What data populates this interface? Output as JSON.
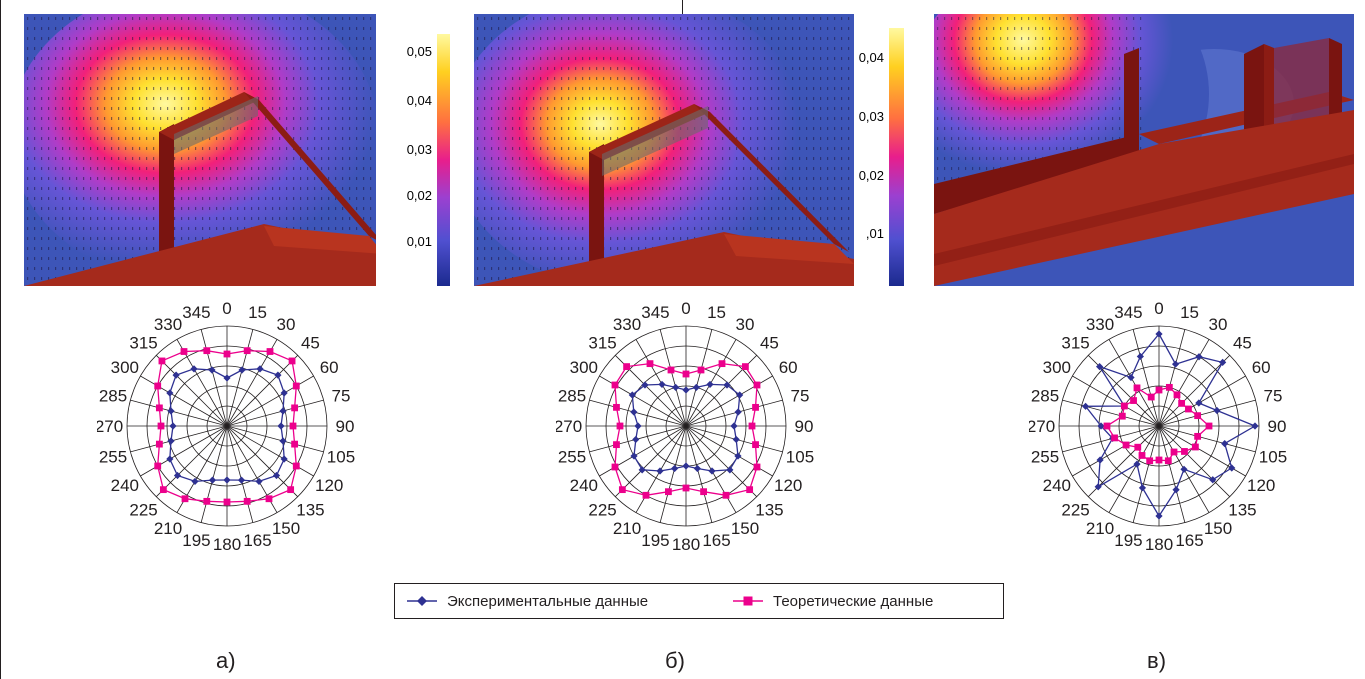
{
  "colorbars": {
    "a": {
      "ticks": [
        "0,05",
        "0,04",
        "0,03",
        "0,02",
        "0,01"
      ]
    },
    "b": {
      "ticks": [
        "0,04",
        "0,03",
        "0,02",
        ",01"
      ]
    }
  },
  "chart_data": [
    {
      "type": "polar-line",
      "panel": "a)",
      "angle_labels": [
        "0",
        "15",
        "30",
        "45",
        "60",
        "75",
        "90",
        "105",
        "120",
        "135",
        "150",
        "165",
        "180",
        "195",
        "210",
        "225",
        "240",
        "255",
        "270",
        "285",
        "300",
        "315",
        "330",
        "345"
      ],
      "rings": 5,
      "series": [
        {
          "name": "Экспериментальные данные",
          "color": "#2e3192",
          "marker": "diamond",
          "r": [
            2.4,
            2.9,
            3.3,
            3.6,
            3.3,
            2.9,
            2.7,
            2.9,
            3.3,
            3.5,
            3.2,
            2.8,
            2.7,
            2.8,
            3.2,
            3.5,
            3.3,
            2.9,
            2.7,
            2.9,
            3.3,
            3.6,
            3.3,
            2.9
          ]
        },
        {
          "name": "Теоретические данные",
          "color": "#ec008c",
          "marker": "square",
          "r": [
            3.6,
            3.9,
            4.3,
            4.6,
            4.0,
            3.5,
            3.3,
            3.5,
            4.0,
            4.5,
            4.2,
            3.9,
            3.8,
            3.9,
            4.2,
            4.5,
            4.0,
            3.5,
            3.3,
            3.5,
            4.0,
            4.6,
            4.3,
            3.9
          ]
        }
      ]
    },
    {
      "type": "polar-line",
      "panel": "б)",
      "angle_labels": [
        "0",
        "15",
        "30",
        "45",
        "60",
        "75",
        "90",
        "105",
        "120",
        "135",
        "150",
        "165",
        "180",
        "195",
        "210",
        "225",
        "240",
        "255",
        "270",
        "285",
        "300",
        "315",
        "330",
        "345"
      ],
      "rings": 5,
      "series": [
        {
          "name": "Экспериментальные данные",
          "color": "#2e3192",
          "marker": "diamond",
          "r": [
            1.8,
            2.0,
            2.4,
            2.9,
            3.1,
            2.7,
            2.4,
            2.6,
            3.0,
            3.1,
            2.6,
            2.2,
            2.0,
            2.2,
            2.6,
            3.1,
            3.0,
            2.6,
            2.4,
            2.7,
            3.1,
            2.9,
            2.4,
            2.0
          ]
        },
        {
          "name": "Теоретические данные",
          "color": "#ec008c",
          "marker": "square",
          "r": [
            2.6,
            2.9,
            3.6,
            4.2,
            4.1,
            3.6,
            3.3,
            3.6,
            4.1,
            4.5,
            4.0,
            3.4,
            3.1,
            3.4,
            4.0,
            4.5,
            4.1,
            3.6,
            3.3,
            3.6,
            4.1,
            4.2,
            3.6,
            2.9
          ]
        }
      ]
    },
    {
      "type": "polar-line",
      "panel": "в)",
      "angle_labels": [
        "0",
        "15",
        "30",
        "45",
        "60",
        "75",
        "90",
        "105",
        "120",
        "135",
        "150",
        "165",
        "180",
        "195",
        "210",
        "225",
        "240",
        "255",
        "270",
        "285",
        "300",
        "315",
        "330",
        "345"
      ],
      "rings": 5,
      "series": [
        {
          "name": "Экспериментальные данные",
          "color": "#2e3192",
          "marker": "diamond",
          "r": [
            4.6,
            3.2,
            4.0,
            4.5,
            2.3,
            3.0,
            4.8,
            3.4,
            4.2,
            3.8,
            2.5,
            3.3,
            4.5,
            3.2,
            2.2,
            4.3,
            3.4,
            2.4,
            2.9,
            3.8,
            2.0,
            4.2,
            2.8,
            3.6
          ]
        },
        {
          "name": "Теоретические данные",
          "color": "#ec008c",
          "marker": "square",
          "r": [
            1.8,
            2.0,
            1.8,
            1.6,
            1.7,
            2.0,
            2.5,
            2.0,
            2.1,
            1.8,
            1.5,
            1.8,
            1.7,
            1.8,
            1.7,
            1.5,
            1.9,
            2.3,
            2.6,
            1.9,
            2.0,
            1.8,
            2.2,
            1.5
          ]
        }
      ]
    }
  ],
  "legend": {
    "experimental": "Экспериментальные данные",
    "theoretical": "Теоретические данные",
    "experimental_color": "#2e3192",
    "theoretical_color": "#ec008c"
  },
  "panels": {
    "a": "а)",
    "b": "б)",
    "c": "в)"
  }
}
